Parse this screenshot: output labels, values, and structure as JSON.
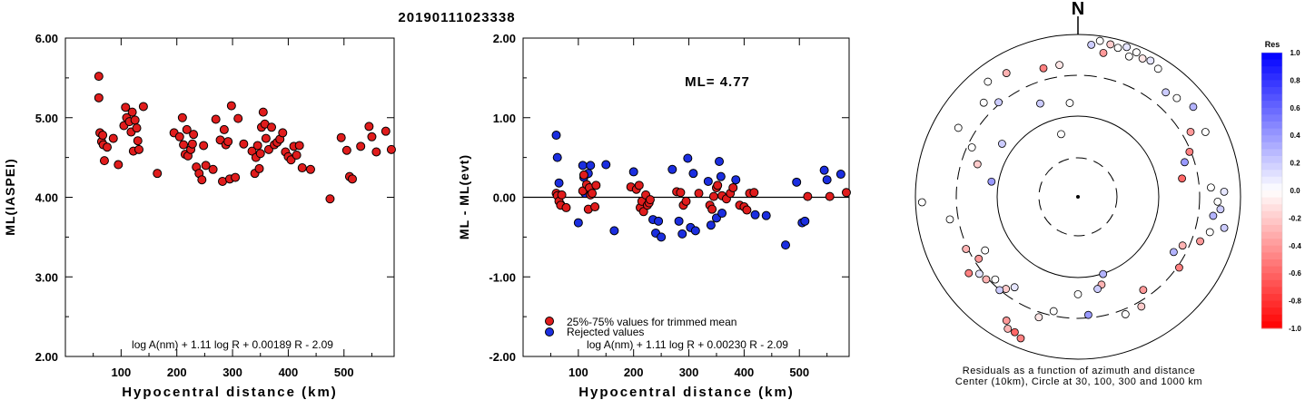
{
  "title": "20190111023338",
  "chart_data": [
    {
      "type": "scatter",
      "ylabel": "ML(IASPEI)",
      "xlabel": "Hypocentral distance (km)",
      "xlim": [
        0,
        590
      ],
      "ylim": [
        2.0,
        6.0
      ],
      "xticks": [
        "100",
        "200",
        "300",
        "400",
        "500"
      ],
      "yticks": [
        "6.00",
        "5.00",
        "4.00",
        "3.00",
        "2.00"
      ],
      "formula": "log A(nm) + 1.11 log R + 0.00189 R - 2.09",
      "marker_color": "#e01c1c",
      "points": [
        [
          60,
          5.52
        ],
        [
          60,
          5.25
        ],
        [
          62,
          4.81
        ],
        [
          65,
          4.7
        ],
        [
          67,
          4.78
        ],
        [
          68,
          4.66
        ],
        [
          70,
          4.46
        ],
        [
          75,
          4.63
        ],
        [
          86,
          4.74
        ],
        [
          95,
          4.41
        ],
        [
          105,
          4.9
        ],
        [
          108,
          5.13
        ],
        [
          110,
          5.0
        ],
        [
          115,
          4.95
        ],
        [
          118,
          4.82
        ],
        [
          120,
          5.07
        ],
        [
          122,
          4.58
        ],
        [
          125,
          4.97
        ],
        [
          128,
          4.87
        ],
        [
          130,
          4.71
        ],
        [
          132,
          4.6
        ],
        [
          140,
          5.14
        ],
        [
          165,
          4.3
        ],
        [
          195,
          4.81
        ],
        [
          205,
          4.76
        ],
        [
          210,
          5.0
        ],
        [
          212,
          4.66
        ],
        [
          215,
          4.54
        ],
        [
          218,
          4.85
        ],
        [
          220,
          4.52
        ],
        [
          225,
          4.6
        ],
        [
          228,
          4.67
        ],
        [
          230,
          4.79
        ],
        [
          235,
          4.38
        ],
        [
          240,
          4.3
        ],
        [
          245,
          4.22
        ],
        [
          248,
          4.65
        ],
        [
          252,
          4.4
        ],
        [
          265,
          4.35
        ],
        [
          270,
          4.98
        ],
        [
          278,
          4.72
        ],
        [
          282,
          4.2
        ],
        [
          285,
          4.85
        ],
        [
          288,
          4.66
        ],
        [
          292,
          4.7
        ],
        [
          295,
          4.23
        ],
        [
          298,
          5.15
        ],
        [
          305,
          4.25
        ],
        [
          310,
          4.99
        ],
        [
          320,
          4.67
        ],
        [
          335,
          4.58
        ],
        [
          340,
          4.3
        ],
        [
          342,
          4.5
        ],
        [
          345,
          4.65
        ],
        [
          348,
          4.36
        ],
        [
          350,
          4.55
        ],
        [
          352,
          4.88
        ],
        [
          355,
          5.07
        ],
        [
          358,
          4.92
        ],
        [
          360,
          4.74
        ],
        [
          365,
          4.6
        ],
        [
          370,
          4.88
        ],
        [
          375,
          4.66
        ],
        [
          380,
          4.69
        ],
        [
          385,
          4.73
        ],
        [
          390,
          4.81
        ],
        [
          395,
          4.57
        ],
        [
          400,
          4.51
        ],
        [
          405,
          4.47
        ],
        [
          410,
          4.64
        ],
        [
          415,
          4.53
        ],
        [
          420,
          4.65
        ],
        [
          425,
          4.37
        ],
        [
          440,
          4.35
        ],
        [
          475,
          3.98
        ],
        [
          495,
          4.75
        ],
        [
          505,
          4.59
        ],
        [
          510,
          4.26
        ],
        [
          515,
          4.23
        ],
        [
          530,
          4.64
        ],
        [
          545,
          4.89
        ],
        [
          550,
          4.76
        ],
        [
          558,
          4.57
        ],
        [
          575,
          4.83
        ],
        [
          585,
          4.6
        ]
      ]
    },
    {
      "type": "scatter",
      "ylabel": "ML - ML(evt)",
      "xlabel": "Hypocentral distance (km)",
      "xlim": [
        0,
        590
      ],
      "ylim": [
        -2.0,
        2.0
      ],
      "xticks": [
        "100",
        "200",
        "300",
        "400",
        "500"
      ],
      "yticks": [
        "2.00",
        "1.00",
        "0.00",
        "-1.00",
        "-2.00"
      ],
      "annotation": "ML= 4.77",
      "zero_line": 0.0,
      "legend": [
        {
          "label": "25%-75% values for trimmed mean",
          "color": "#e01c1c"
        },
        {
          "label": "Rejected values",
          "color": "#1b2ee0"
        }
      ],
      "formula": "log A(nm) + 1.11 log R + 0.00230 R - 2.09",
      "trimmed": [
        [
          60,
          0.05
        ],
        [
          62,
          0.02
        ],
        [
          65,
          -0.05
        ],
        [
          68,
          -0.1
        ],
        [
          70,
          0.03
        ],
        [
          78,
          -0.13
        ],
        [
          108,
          0.08
        ],
        [
          110,
          0.28
        ],
        [
          115,
          0.16
        ],
        [
          118,
          -0.15
        ],
        [
          120,
          0.12
        ],
        [
          122,
          0.03
        ],
        [
          125,
          0.05
        ],
        [
          130,
          -0.12
        ],
        [
          132,
          0.15
        ],
        [
          195,
          0.13
        ],
        [
          205,
          0.1
        ],
        [
          210,
          0.15
        ],
        [
          212,
          -0.13
        ],
        [
          215,
          -0.05
        ],
        [
          218,
          -0.18
        ],
        [
          222,
          0.03
        ],
        [
          225,
          -0.1
        ],
        [
          228,
          -0.07
        ],
        [
          230,
          -0.03
        ],
        [
          278,
          0.07
        ],
        [
          285,
          0.06
        ],
        [
          290,
          -0.1
        ],
        [
          295,
          -0.05
        ],
        [
          318,
          0.05
        ],
        [
          338,
          -0.1
        ],
        [
          342,
          -0.15
        ],
        [
          345,
          0.01
        ],
        [
          350,
          0.12
        ],
        [
          352,
          0.15
        ],
        [
          360,
          0.02
        ],
        [
          368,
          -0.02
        ],
        [
          375,
          0.05
        ],
        [
          380,
          0.12
        ],
        [
          392,
          -0.1
        ],
        [
          400,
          -0.12
        ],
        [
          405,
          -0.16
        ],
        [
          410,
          0.05
        ],
        [
          418,
          0.06
        ],
        [
          515,
          0.01
        ],
        [
          555,
          0.01
        ],
        [
          585,
          0.06
        ]
      ],
      "rejected": [
        [
          60,
          0.78
        ],
        [
          62,
          0.5
        ],
        [
          65,
          0.18
        ],
        [
          68,
          -0.09
        ],
        [
          100,
          -0.32
        ],
        [
          108,
          0.4
        ],
        [
          110,
          0.25
        ],
        [
          112,
          0.05
        ],
        [
          118,
          0.3
        ],
        [
          122,
          0.4
        ],
        [
          150,
          0.41
        ],
        [
          165,
          -0.42
        ],
        [
          200,
          0.32
        ],
        [
          235,
          -0.28
        ],
        [
          240,
          -0.45
        ],
        [
          245,
          -0.3
        ],
        [
          250,
          -0.5
        ],
        [
          270,
          0.35
        ],
        [
          282,
          -0.3
        ],
        [
          288,
          -0.46
        ],
        [
          298,
          0.49
        ],
        [
          303,
          -0.38
        ],
        [
          308,
          0.3
        ],
        [
          312,
          -0.42
        ],
        [
          335,
          0.2
        ],
        [
          340,
          -0.35
        ],
        [
          350,
          -0.26
        ],
        [
          355,
          0.45
        ],
        [
          358,
          0.26
        ],
        [
          360,
          -0.2
        ],
        [
          385,
          0.22
        ],
        [
          420,
          -0.22
        ],
        [
          440,
          -0.23
        ],
        [
          475,
          -0.6
        ],
        [
          495,
          0.19
        ],
        [
          505,
          -0.32
        ],
        [
          510,
          -0.3
        ],
        [
          545,
          0.34
        ],
        [
          550,
          0.22
        ],
        [
          575,
          0.29
        ]
      ]
    },
    {
      "type": "scatter",
      "subtype": "polar residuals",
      "north_label": "N",
      "caption_line1": "Residuals as a function of azimuth and distance",
      "caption_line2": "Center (10km), Circle at 30, 100, 300 and 1000 km",
      "colorbar_title": "Res",
      "colorbar_ticks": [
        "1.0",
        "0.8",
        "0.6",
        "0.4",
        "0.2",
        "0.0",
        "-0.2",
        "-0.4",
        "-0.6",
        "-0.8",
        "-1.0"
      ],
      "colorbar_range": [
        -1.0,
        1.0
      ],
      "points_az_r_res": [
        [
          5,
          0.94,
          0.2
        ],
        [
          8,
          0.97,
          0.0
        ],
        [
          12,
          0.96,
          -0.2
        ],
        [
          15,
          0.95,
          0.0
        ],
        [
          18,
          0.97,
          0.1
        ],
        [
          22,
          0.96,
          0.0
        ],
        [
          25,
          0.94,
          -0.1
        ],
        [
          20,
          0.92,
          0.0
        ],
        [
          10,
          0.9,
          -0.4
        ],
        [
          28,
          0.95,
          0.1
        ],
        [
          32,
          0.93,
          0.0
        ],
        [
          40,
          0.84,
          0.2
        ],
        [
          45,
          0.86,
          0.0
        ],
        [
          52,
          0.9,
          0.3
        ],
        [
          60,
          0.8,
          -0.4
        ],
        [
          63,
          0.88,
          0.0
        ],
        [
          68,
          0.74,
          -0.5
        ],
        [
          72,
          0.69,
          0.4
        ],
        [
          80,
          0.65,
          -0.6
        ],
        [
          86,
          0.82,
          0.0
        ],
        [
          88,
          0.9,
          0.1
        ],
        [
          92,
          0.86,
          0.0
        ],
        [
          95,
          0.88,
          0.2
        ],
        [
          98,
          0.84,
          0.3
        ],
        [
          102,
          0.92,
          0.2
        ],
        [
          105,
          0.84,
          0.0
        ],
        [
          110,
          0.8,
          -0.4
        ],
        [
          115,
          0.71,
          -0.3
        ],
        [
          120,
          0.68,
          0.3
        ],
        [
          125,
          0.76,
          -0.5
        ],
        [
          145,
          0.7,
          -0.4
        ],
        [
          150,
          0.78,
          -0.2
        ],
        [
          158,
          0.78,
          0.0
        ],
        [
          162,
          0.5,
          0.3
        ],
        [
          165,
          0.56,
          -0.3
        ],
        [
          168,
          0.58,
          0.2
        ],
        [
          175,
          0.73,
          0.4
        ],
        [
          180,
          0.6,
          0.0
        ],
        [
          192,
          0.72,
          0.0
        ],
        [
          198,
          0.78,
          -0.1
        ],
        [
          202,
          0.94,
          -0.5
        ],
        [
          205,
          0.92,
          -0.6
        ],
        [
          208,
          0.92,
          -0.3
        ],
        [
          210,
          0.88,
          -0.4
        ],
        [
          215,
          0.68,
          0.1
        ],
        [
          218,
          0.72,
          -0.2
        ],
        [
          220,
          0.75,
          0.2
        ],
        [
          225,
          0.72,
          0.0
        ],
        [
          228,
          0.76,
          -0.3
        ],
        [
          232,
          0.77,
          0.1
        ],
        [
          235,
          0.82,
          -0.5
        ],
        [
          238,
          0.72,
          -0.4
        ],
        [
          240,
          0.66,
          0.0
        ],
        [
          245,
          0.76,
          -0.3
        ],
        [
          260,
          0.8,
          0.0
        ],
        [
          268,
          0.96,
          0.0
        ],
        [
          280,
          0.54,
          0.4
        ],
        [
          288,
          0.65,
          -0.2
        ],
        [
          295,
          0.72,
          0.0
        ],
        [
          305,
          0.57,
          0.2
        ],
        [
          315,
          0.82,
          0.0
        ],
        [
          322,
          0.9,
          0.0
        ],
        [
          330,
          0.88,
          -0.3
        ],
        [
          338,
          0.62,
          0.2
        ],
        [
          345,
          0.82,
          -0.5
        ],
        [
          352,
          0.82,
          -0.1
        ],
        [
          355,
          0.58,
          0.0
        ],
        [
          345,
          0.4,
          0.0
        ],
        [
          320,
          0.76,
          0.2
        ],
        [
          300,
          0.85,
          0.0
        ]
      ]
    }
  ]
}
